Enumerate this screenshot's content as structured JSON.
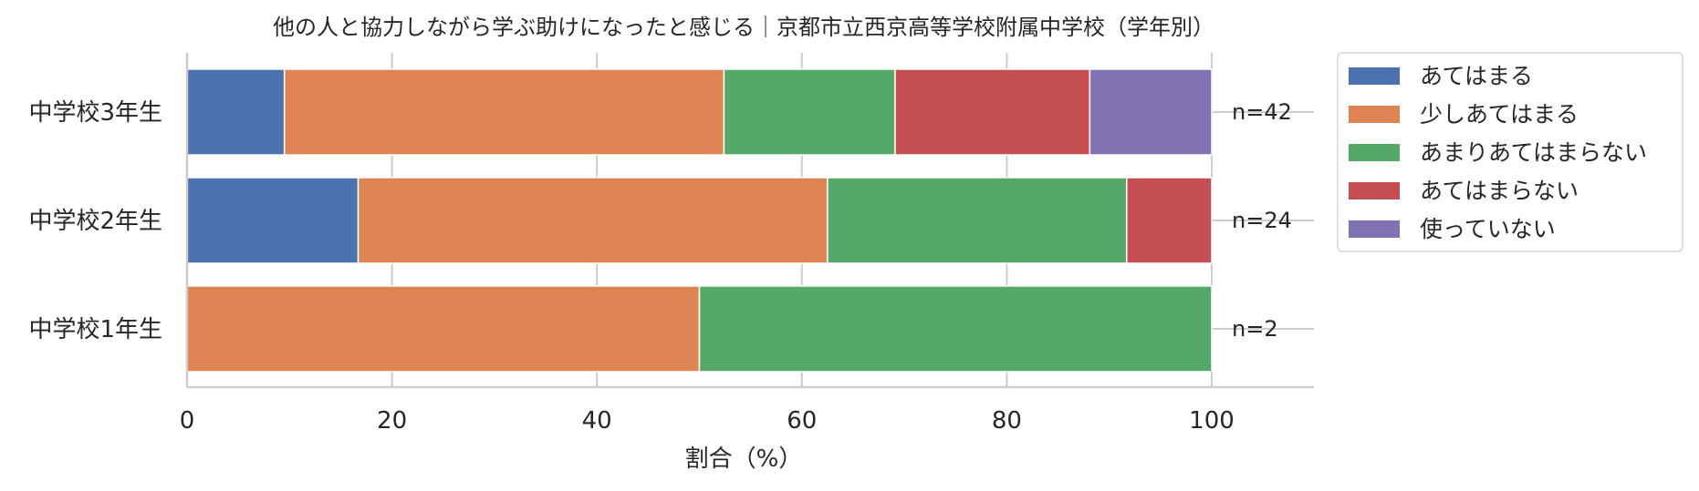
{
  "chart_data": {
    "type": "bar",
    "orientation": "horizontal",
    "stacked": true,
    "title": "他の人と協力しながら学ぶ助けになったと感じる｜京都市立西京高等学校附属中学校（学年別）",
    "xlabel": "割合（%）",
    "ylabel": "",
    "xlim": [
      0,
      110
    ],
    "xticks": [
      0,
      20,
      40,
      60,
      80,
      100
    ],
    "grid": true,
    "legend_position": "outside-right",
    "categories": [
      "中学校3年生",
      "中学校2年生",
      "中学校1年生"
    ],
    "n_labels": [
      "n=42",
      "n=24",
      "n=2"
    ],
    "series": [
      {
        "name": "あてはまる",
        "color": "#4c72b0",
        "values": [
          9.5,
          16.7,
          0
        ]
      },
      {
        "name": "少しあてはまる",
        "color": "#dd8452",
        "values": [
          42.9,
          45.8,
          50.0
        ]
      },
      {
        "name": "あまりあてはまらない",
        "color": "#55a868",
        "values": [
          16.7,
          29.2,
          50.0
        ]
      },
      {
        "name": "あてはまらない",
        "color": "#c44e52",
        "values": [
          19.0,
          8.3,
          0
        ]
      },
      {
        "name": "使っていない",
        "color": "#8172b3",
        "values": [
          11.9,
          0,
          0
        ]
      }
    ]
  }
}
